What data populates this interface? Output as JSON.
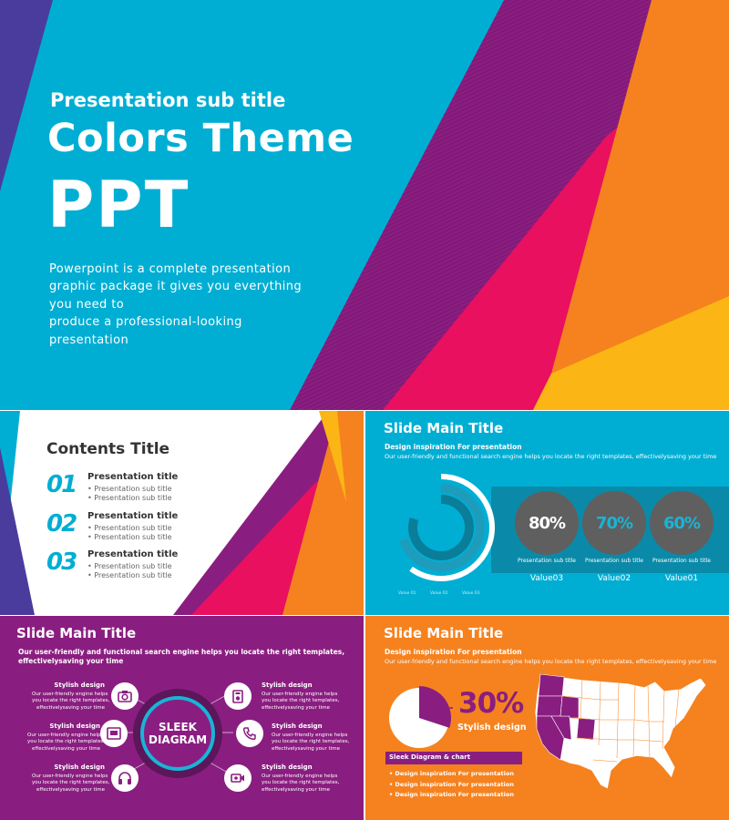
{
  "hero": {
    "subtitle": "Presentation sub title",
    "title": "Colors Theme",
    "big": "PPT",
    "description_lines": [
      "Powerpoint is a complete presentation",
      "graphic package it gives you everything",
      "you need to",
      "produce a professional-looking",
      "presentation"
    ]
  },
  "contents": {
    "title": "Contents Title",
    "items": [
      {
        "number": "01",
        "title": "Presentation title",
        "bullets": [
          "Presentation sub title",
          "Presentation sub title"
        ]
      },
      {
        "number": "02",
        "title": "Presentation title",
        "bullets": [
          "Presentation sub title",
          "Presentation sub title"
        ]
      },
      {
        "number": "03",
        "title": "Presentation title",
        "bullets": [
          "Presentation sub title",
          "Presentation sub title"
        ]
      }
    ]
  },
  "chart_slide": {
    "title": "Slide Main Title",
    "subtitle": "Design inspiration For presentation",
    "description": "Our user-friendly and functional search engine helps you locate the right templates, effectivelysaving your time",
    "percent_items": [
      {
        "pct": "80%",
        "label": "Presentation sub title",
        "value": "Value03",
        "color": "#ffffff"
      },
      {
        "pct": "70%",
        "label": "Presentation sub title",
        "value": "Value02",
        "color": "#19b4d6"
      },
      {
        "pct": "60%",
        "label": "Presentation sub title",
        "value": "Value01",
        "color": "#19b4d6"
      }
    ],
    "legend": [
      "Value 01",
      "Value 02",
      "Value 03"
    ]
  },
  "chart_data": {
    "type": "pie",
    "categories": [
      "Value 01",
      "Value 02",
      "Value 03"
    ],
    "values": [
      60,
      70,
      80
    ],
    "title": "",
    "colors": [
      "#ffffff",
      "#1e9cbc",
      "#0a7d99"
    ]
  },
  "diagram": {
    "title": "Slide Main Title",
    "description_lines": [
      "Our user-friendly and functional search engine helps you locate the right templates,",
      "effectivelysaving your time"
    ],
    "center_lines": [
      "SLEEK",
      "DIAGRAM"
    ],
    "items": [
      {
        "heading": "Stylish design",
        "body": [
          "Our user-friendly engine helps",
          "you locate the right templates,",
          "effectivelysaving your time"
        ],
        "icon": "camera-icon"
      },
      {
        "heading": "Stylish design",
        "body": [
          "Our user-friendly engine helps",
          "you locate the right templates,",
          "effectivelysaving your time"
        ],
        "icon": "image-icon"
      },
      {
        "heading": "Stylish design",
        "body": [
          "Our user-friendly engine helps",
          "you locate the right templates,",
          "effectivelysaving your time"
        ],
        "icon": "headphones-icon"
      },
      {
        "heading": "Stylish design",
        "body": [
          "Our user-friendly engine helps",
          "you locate the right templates,",
          "effectivelysaving your time"
        ],
        "icon": "music-player-icon"
      },
      {
        "heading": "Stylish design",
        "body": [
          "Our user-friendly engine helps",
          "you locate the right templates,",
          "effectivelysaving your time"
        ],
        "icon": "phone-icon"
      },
      {
        "heading": "Stylish design",
        "body": [
          "Our user-friendly engine helps",
          "you locate the right templates,",
          "effectivelysaving your time"
        ],
        "icon": "video-camera-icon"
      }
    ]
  },
  "map_slide": {
    "title": "Slide Main Title",
    "subtitle": "Design inspiration For presentation",
    "description": "Our user-friendly and functional search engine helps you locate the right templates, effectivelysaving your time",
    "percent": "30%",
    "percent_value": 30,
    "percent_label": "Stylish design",
    "bar_label": "Sleek Diagram & chart",
    "list": [
      "Design inspiration For presentation",
      "Design inspiration For presentation",
      "Design inspiration For presentation"
    ]
  },
  "colors": {
    "cyan": "#00aed4",
    "purple": "#8a1e80",
    "magenta": "#e8105f",
    "orange": "#f5821f",
    "yellow": "#fbb615",
    "indigo": "#4a3c9c"
  }
}
